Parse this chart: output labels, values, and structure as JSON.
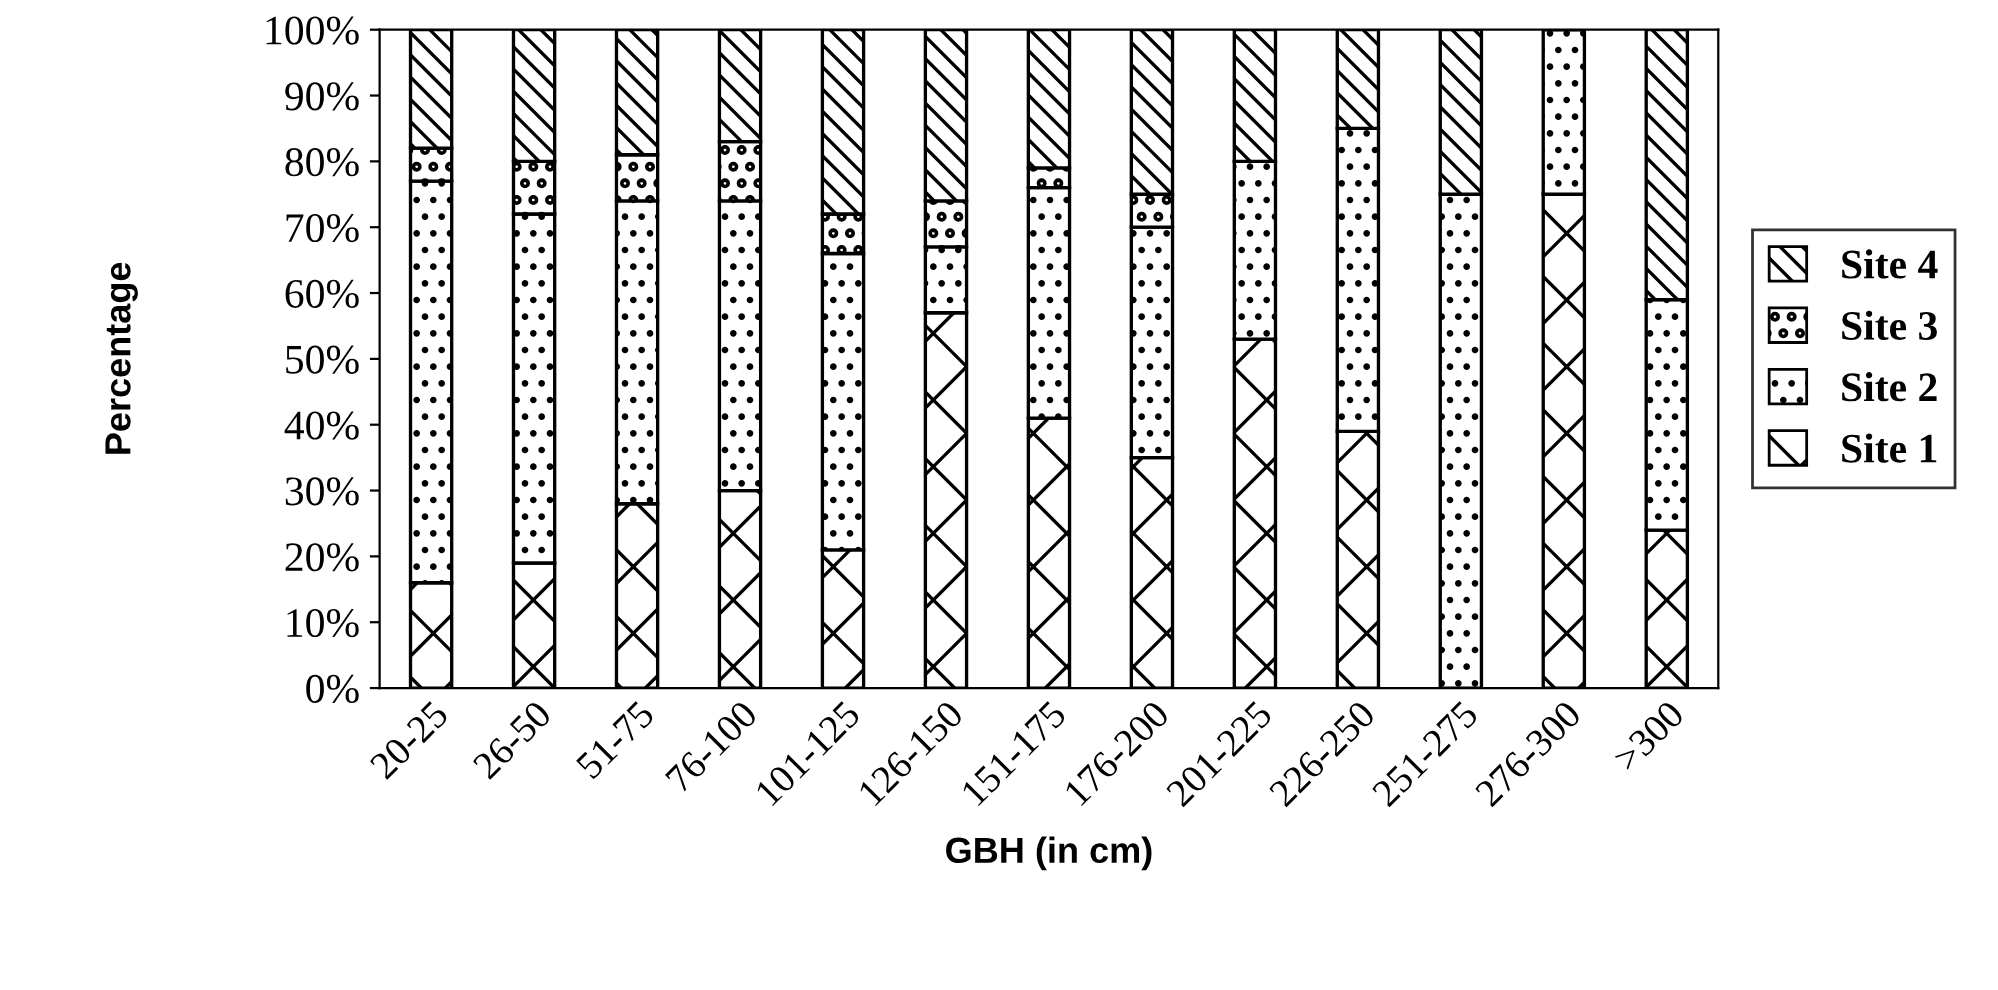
{
  "chart_data": {
    "type": "bar",
    "stacked": true,
    "xlabel": "GBH (in cm)",
    "ylabel": "Percentage",
    "categories": [
      "20-25",
      "26-50",
      "51-75",
      "76-100",
      "101-125",
      "126-150",
      "151-175",
      "176-200",
      "201-225",
      "226-250",
      "251-275",
      "276-300",
      ">300"
    ],
    "series": [
      {
        "name": "Site 1",
        "color": "#000000",
        "values": [
          16,
          19,
          28,
          30,
          21,
          57,
          41,
          35,
          53,
          39,
          0,
          75,
          24
        ]
      },
      {
        "name": "Site 2",
        "color": "#000000",
        "values": [
          61,
          53,
          46,
          44,
          45,
          10,
          35,
          35,
          27,
          46,
          75,
          25,
          35
        ]
      },
      {
        "name": "Site 3",
        "color": "#000000",
        "values": [
          5,
          8,
          7,
          9,
          6,
          7,
          3,
          5,
          0,
          0,
          0,
          0,
          0
        ]
      },
      {
        "name": "Site 4",
        "color": "#000000",
        "values": [
          18,
          20,
          19,
          17,
          28,
          26,
          21,
          25,
          20,
          15,
          25,
          0,
          41
        ]
      }
    ],
    "ylim": [
      0,
      100
    ],
    "yticks": [
      {
        "value": 0,
        "label": "0%"
      },
      {
        "value": 10,
        "label": "10%"
      },
      {
        "value": 20,
        "label": "20%"
      },
      {
        "value": 30,
        "label": "30%"
      },
      {
        "value": 40,
        "label": "40%"
      },
      {
        "value": 50,
        "label": "50%"
      },
      {
        "value": 60,
        "label": "60%"
      },
      {
        "value": 70,
        "label": "70%"
      },
      {
        "value": 80,
        "label": "80%"
      },
      {
        "value": 90,
        "label": "90%"
      },
      {
        "value": 100,
        "label": "100%"
      }
    ],
    "grid": false,
    "legend": "right"
  }
}
